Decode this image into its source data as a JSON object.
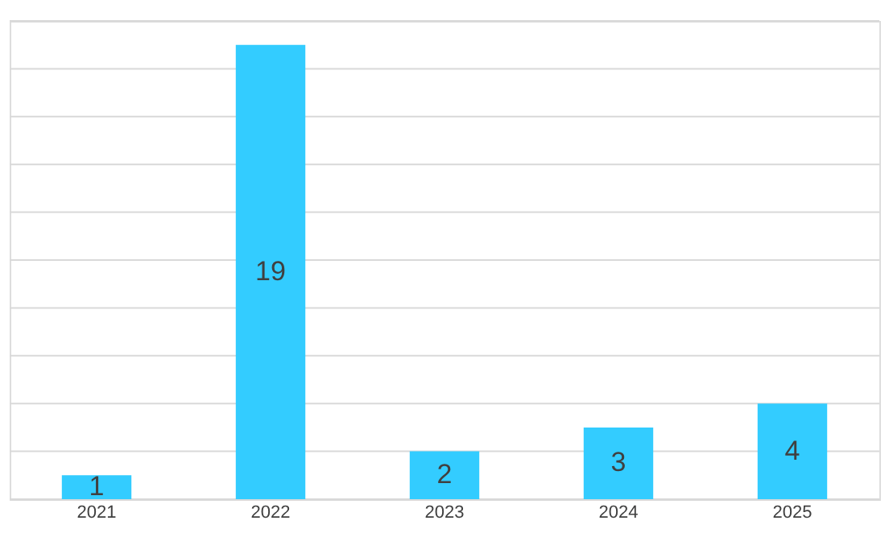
{
  "chart_data": {
    "type": "bar",
    "categories": [
      "2021",
      "2022",
      "2023",
      "2024",
      "2025"
    ],
    "values": [
      1,
      19,
      2,
      3,
      4
    ],
    "color": "#33ccff",
    "ylim": [
      0,
      20
    ],
    "yticks": [
      {
        "value": 0,
        "label": null
      },
      {
        "value": 2,
        "label": null
      },
      {
        "value": 4,
        "label": null
      },
      {
        "value": 6,
        "label": null
      },
      {
        "value": 8,
        "label": null
      },
      {
        "value": 10,
        "label": null
      },
      {
        "value": 12,
        "label": null
      },
      {
        "value": 14,
        "label": null
      },
      {
        "value": 16,
        "label": null
      },
      {
        "value": 18,
        "label": null
      },
      {
        "value": 20,
        "label": null
      }
    ],
    "tick_labels": "x",
    "grid": "y",
    "data_labels": true
  }
}
